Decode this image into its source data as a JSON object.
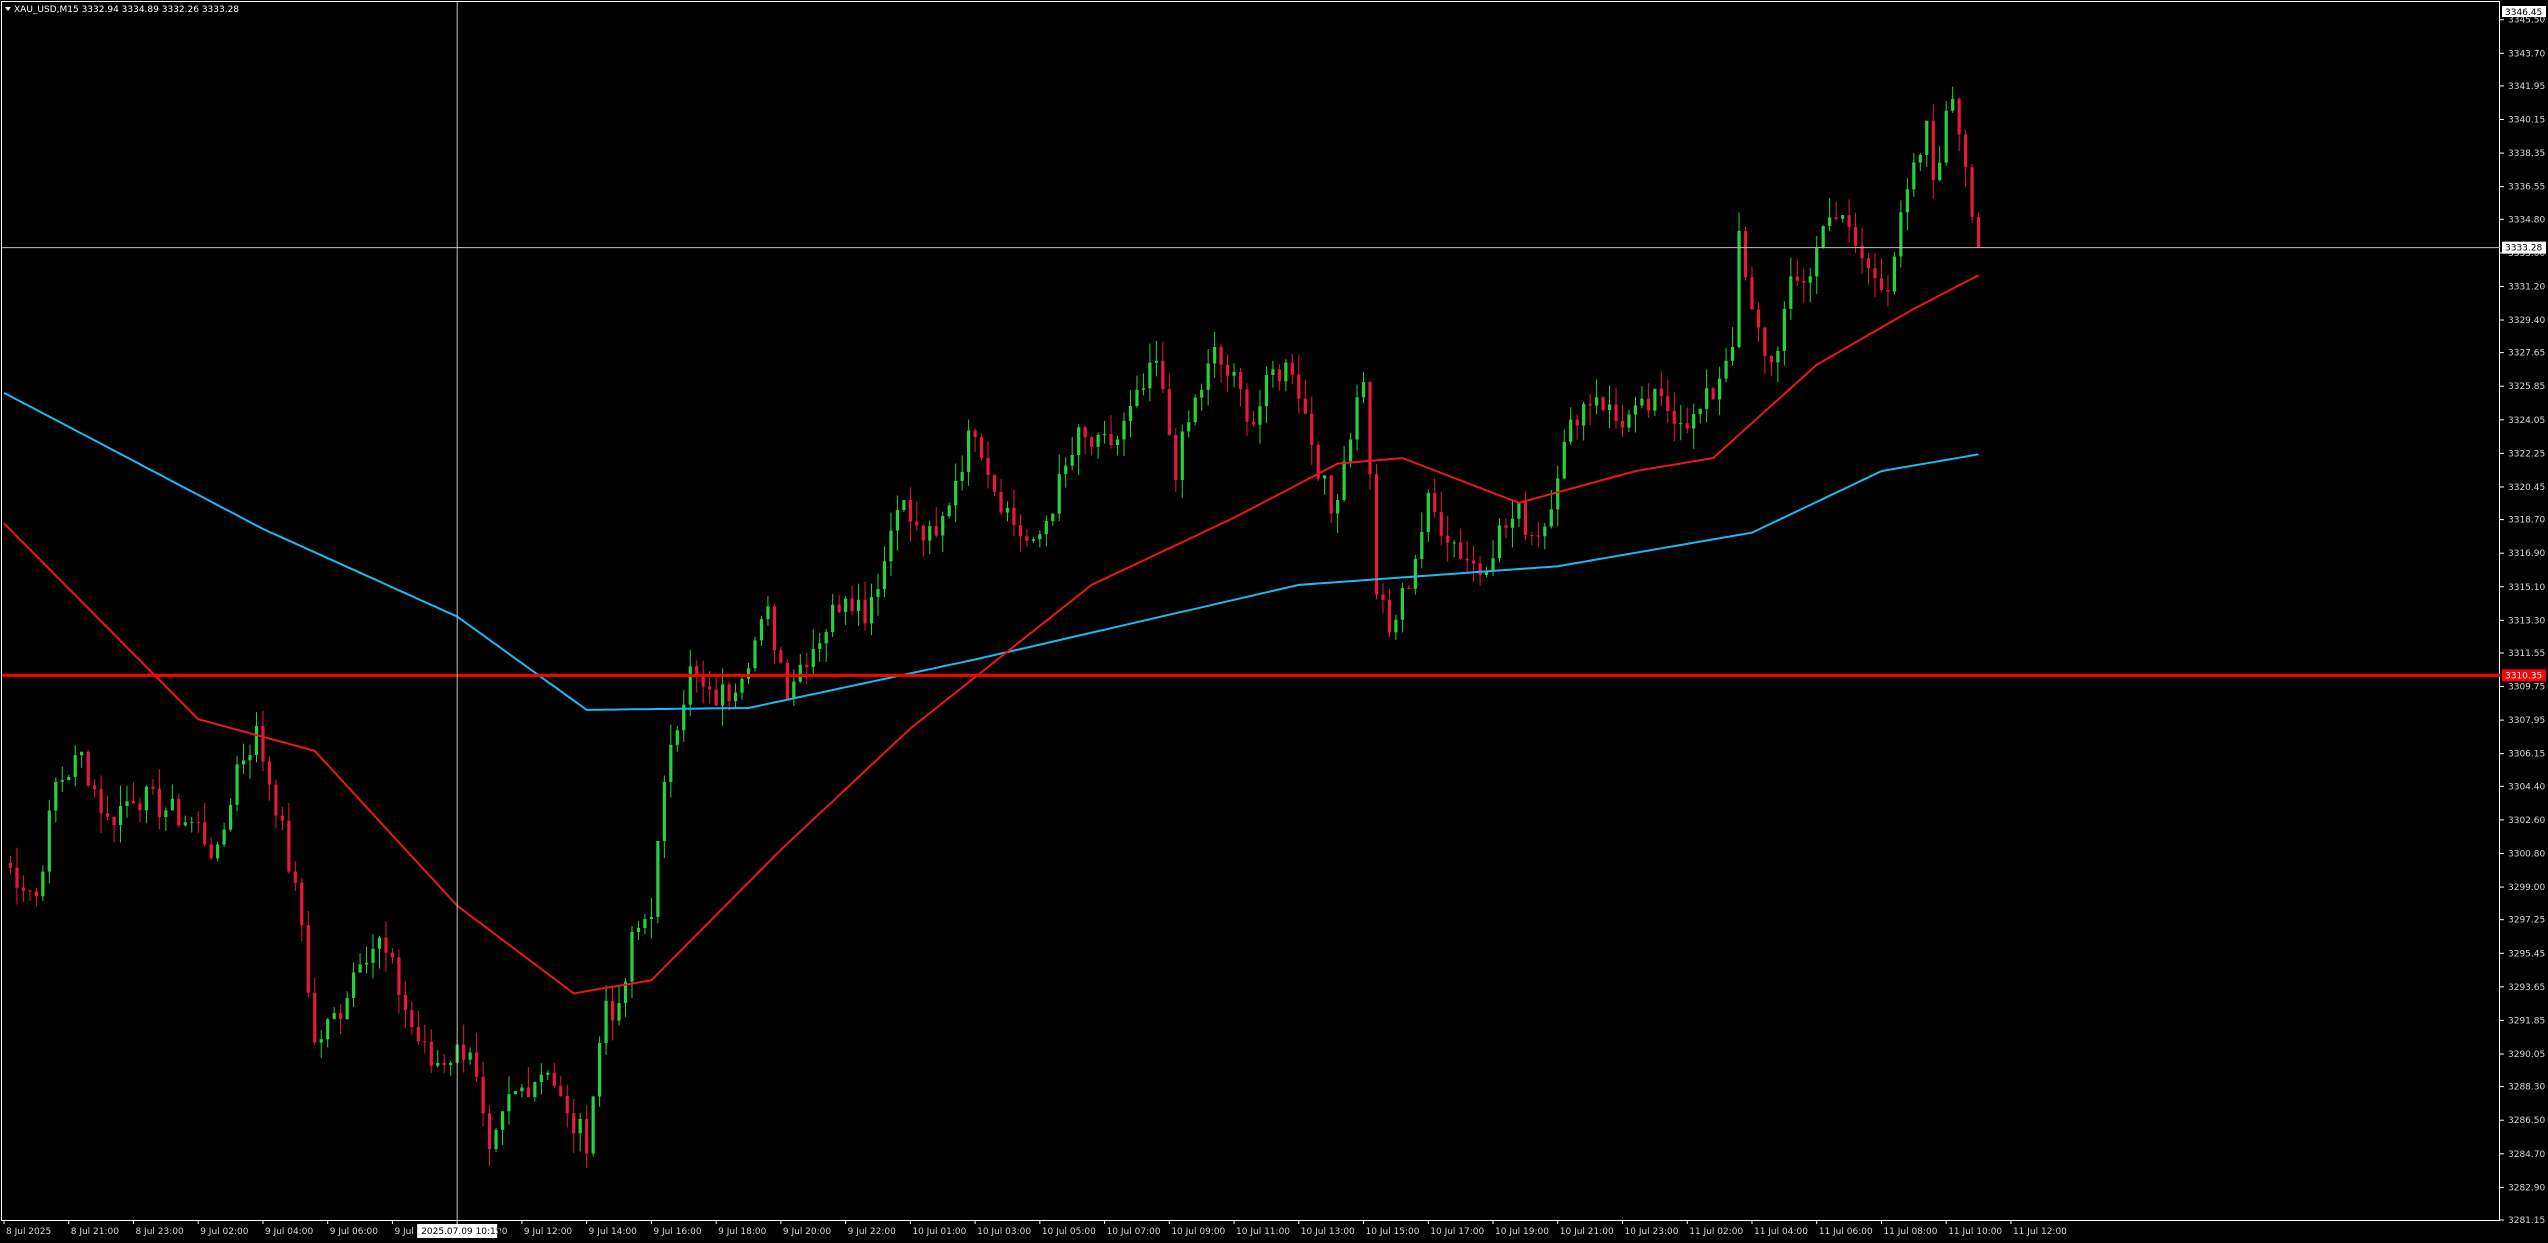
{
  "header": {
    "symbol_line": "XAU_USD,M15  3332.94 3334.89 3332.26 3333.28",
    "menu_icon": "triangle-down-icon"
  },
  "crosshair": {
    "time_label": "2025.07.09 10:15",
    "time_value": "2025.07.09 10:15"
  },
  "tags": {
    "current_price": "3333.28",
    "level_price": "3310.35",
    "top_price": "3346.45"
  },
  "colors": {
    "background": "#000000",
    "frame": "#ffffff",
    "bull_candle": "#26d13f",
    "bear_candle": "#e8183c",
    "ma_fast": "#e8181c",
    "ma_slow": "#1fb8f0",
    "horizontal_level": "#ff0000",
    "crosshair": "#c0c0c0"
  },
  "chart_data": {
    "type": "candlestick",
    "symbol": "XAU_USD",
    "timeframe": "M15",
    "ohlc": {
      "open": 3332.94,
      "high": 3334.89,
      "low": 3332.26,
      "close": 3333.28
    },
    "ylim": [
      3281.15,
      3346.45
    ],
    "y_ticks": [
      "3346.45",
      "3345.50",
      "3343.70",
      "3341.95",
      "3340.15",
      "3338.35",
      "3336.55",
      "3334.80",
      "3333.00",
      "3331.20",
      "3329.40",
      "3327.65",
      "3325.85",
      "3324.05",
      "3322.25",
      "3320.45",
      "3318.70",
      "3316.90",
      "3315.10",
      "3313.30",
      "3311.55",
      "3309.75",
      "3307.95",
      "3306.15",
      "3304.40",
      "3302.60",
      "3300.80",
      "3299.00",
      "3297.25",
      "3295.45",
      "3293.65",
      "3291.85",
      "3290.05",
      "3288.30",
      "3286.50",
      "3284.70",
      "3282.90",
      "3281.15"
    ],
    "x_ticks": [
      "8 Jul 2025",
      "8 Jul 21:00",
      "8 Jul 23:00",
      "9 Jul 02:00",
      "9 Jul 04:00",
      "9 Jul 06:00",
      "9 Jul 08:00",
      "9 Jul 10:00",
      "9 Jul 12:00",
      "9 Jul 14:00",
      "9 Jul 16:00",
      "9 Jul 18:00",
      "9 Jul 20:00",
      "9 Jul 22:00",
      "10 Jul 01:00",
      "10 Jul 03:00",
      "10 Jul 05:00",
      "10 Jul 07:00",
      "10 Jul 09:00",
      "10 Jul 11:00",
      "10 Jul 13:00",
      "10 Jul 15:00",
      "10 Jul 17:00",
      "10 Jul 19:00",
      "10 Jul 21:00",
      "10 Jul 23:00",
      "11 Jul 02:00",
      "11 Jul 04:00",
      "11 Jul 06:00",
      "11 Jul 08:00",
      "11 Jul 10:00",
      "11 Jul 12:00"
    ],
    "horizontal_level": 3310.35,
    "current_price": 3333.28,
    "crosshair": {
      "time_index": 70,
      "price": 3333.28
    },
    "candle_count": 305,
    "candle_anchors": [
      [
        0,
        3300.3
      ],
      [
        5,
        3298.5
      ],
      [
        8,
        3304.5
      ],
      [
        12,
        3306.0
      ],
      [
        16,
        3302.5
      ],
      [
        20,
        3304.0
      ],
      [
        25,
        3303.2
      ],
      [
        30,
        3302.2
      ],
      [
        33,
        3300.5
      ],
      [
        36,
        3305.5
      ],
      [
        39,
        3307.2
      ],
      [
        42,
        3303.5
      ],
      [
        46,
        3297.0
      ],
      [
        48,
        3290.5
      ],
      [
        52,
        3292.5
      ],
      [
        55,
        3295.5
      ],
      [
        58,
        3296.0
      ],
      [
        60,
        3294.5
      ],
      [
        63,
        3291.5
      ],
      [
        66,
        3289.5
      ],
      [
        69,
        3290.0
      ],
      [
        72,
        3290.5
      ],
      [
        75,
        3284.2
      ],
      [
        78,
        3287.5
      ],
      [
        81,
        3288.5
      ],
      [
        84,
        3289.5
      ],
      [
        87,
        3286.5
      ],
      [
        90,
        3285.5
      ],
      [
        93,
        3293.0
      ],
      [
        95,
        3292.0
      ],
      [
        97,
        3296.0
      ],
      [
        100,
        3298.0
      ],
      [
        103,
        3307.0
      ],
      [
        106,
        3310.5
      ],
      [
        109,
        3309.0
      ],
      [
        112,
        3309.5
      ],
      [
        115,
        3311.5
      ],
      [
        118,
        3313.5
      ],
      [
        121,
        3309.8
      ],
      [
        124,
        3311.5
      ],
      [
        127,
        3313.0
      ],
      [
        130,
        3315.0
      ],
      [
        133,
        3313.8
      ],
      [
        136,
        3316.5
      ],
      [
        138,
        3320.0
      ],
      [
        141,
        3318.0
      ],
      [
        144,
        3317.5
      ],
      [
        147,
        3321.0
      ],
      [
        150,
        3323.8
      ],
      [
        153,
        3320.5
      ],
      [
        156,
        3318.5
      ],
      [
        159,
        3317.0
      ],
      [
        163,
        3320.5
      ],
      [
        166,
        3323.0
      ],
      [
        169,
        3322.5
      ],
      [
        172,
        3323.0
      ],
      [
        175,
        3325.0
      ],
      [
        178,
        3327.0
      ],
      [
        181,
        3321.5
      ],
      [
        184,
        3325.0
      ],
      [
        187,
        3327.5
      ],
      [
        190,
        3326.0
      ],
      [
        193,
        3324.0
      ],
      [
        196,
        3326.5
      ],
      [
        199,
        3327.0
      ],
      [
        202,
        3323.0
      ],
      [
        205,
        3319.0
      ],
      [
        208,
        3323.5
      ],
      [
        210,
        3326.5
      ],
      [
        212,
        3315.0
      ],
      [
        214,
        3312.5
      ],
      [
        217,
        3315.5
      ],
      [
        220,
        3319.5
      ],
      [
        222,
        3318.5
      ],
      [
        225,
        3317.0
      ],
      [
        228,
        3316.0
      ],
      [
        231,
        3318.0
      ],
      [
        234,
        3319.0
      ],
      [
        236,
        3318.0
      ],
      [
        238,
        3318.5
      ],
      [
        240,
        3321.5
      ],
      [
        243,
        3324.5
      ],
      [
        246,
        3325.5
      ],
      [
        249,
        3324.0
      ],
      [
        252,
        3324.2
      ],
      [
        255,
        3325.0
      ],
      [
        258,
        3324.5
      ],
      [
        261,
        3324.0
      ],
      [
        264,
        3325.5
      ],
      [
        267,
        3328.5
      ],
      [
        268,
        3333.5
      ],
      [
        270,
        3329.5
      ],
      [
        273,
        3327.0
      ],
      [
        276,
        3331.0
      ],
      [
        279,
        3332.0
      ],
      [
        282,
        3335.5
      ],
      [
        285,
        3334.0
      ],
      [
        288,
        3332.0
      ],
      [
        291,
        3331.5
      ],
      [
        294,
        3336.0
      ],
      [
        297,
        3339.5
      ],
      [
        298,
        3337.0
      ],
      [
        301,
        3341.5
      ],
      [
        303,
        3338.0
      ],
      [
        305,
        3333.3
      ]
    ],
    "ma_slow_anchors": [
      [
        0,
        3325.5
      ],
      [
        40,
        3318.2
      ],
      [
        70,
        3313.5
      ],
      [
        90,
        3308.5
      ],
      [
        115,
        3308.6
      ],
      [
        150,
        3311.2
      ],
      [
        200,
        3315.2
      ],
      [
        240,
        3316.2
      ],
      [
        270,
        3318.0
      ],
      [
        290,
        3321.3
      ],
      [
        305,
        3322.2
      ]
    ],
    "ma_fast_anchors": [
      [
        0,
        3318.5
      ],
      [
        30,
        3308.0
      ],
      [
        48,
        3306.3
      ],
      [
        70,
        3298.0
      ],
      [
        88,
        3293.3
      ],
      [
        100,
        3294.0
      ],
      [
        120,
        3301.0
      ],
      [
        140,
        3307.5
      ],
      [
        168,
        3315.2
      ],
      [
        190,
        3318.8
      ],
      [
        206,
        3321.7
      ],
      [
        216,
        3322.0
      ],
      [
        234,
        3319.6
      ],
      [
        252,
        3321.3
      ],
      [
        264,
        3322.0
      ],
      [
        280,
        3327.0
      ],
      [
        295,
        3330.0
      ],
      [
        305,
        3331.8
      ]
    ],
    "series": [
      {
        "values_ref": "ma_fast_anchors"
      },
      {
        "values_ref": "ma_slow_anchors"
      }
    ]
  }
}
